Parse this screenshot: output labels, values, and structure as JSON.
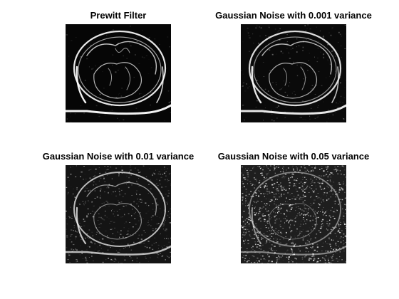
{
  "figure": {
    "panels": [
      {
        "title": "Prewitt Filter",
        "image_icon": "ct-chest-edge-map-icon",
        "noise_level": 0
      },
      {
        "title": "Gaussian Noise with 0.001 variance",
        "image_icon": "ct-chest-edge-map-low-noise-icon",
        "noise_level": 0.001
      },
      {
        "title": "Gaussian Noise with 0.01 variance",
        "image_icon": "ct-chest-edge-map-medium-noise-icon",
        "noise_level": 0.01
      },
      {
        "title": "Gaussian Noise with 0.05 variance",
        "image_icon": "ct-chest-edge-map-high-noise-icon",
        "noise_level": 0.05
      }
    ],
    "colors": {
      "background": "#ffffff",
      "image_bg": "#050505",
      "edge": "#ffffff",
      "title": "#000000"
    }
  }
}
